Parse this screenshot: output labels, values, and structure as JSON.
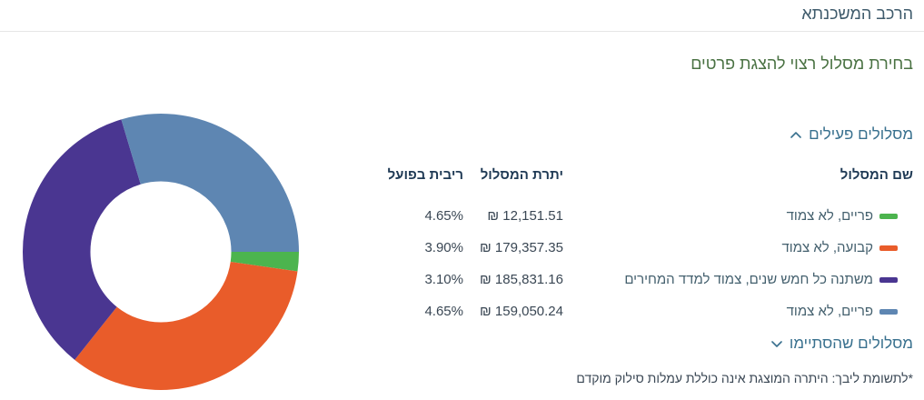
{
  "header": {
    "title": "הרכב המשכנתא"
  },
  "intro": {
    "subtitle": "בחירת מסלול רצוי להצגת פרטים"
  },
  "sections": {
    "active": {
      "label": "מסלולים פעילים",
      "state": "expanded"
    },
    "finished": {
      "label": "מסלולים שהסתיימו",
      "state": "collapsed"
    }
  },
  "table": {
    "headers": {
      "name": "שם המסלול",
      "balance": "יתרת המסלול",
      "rate": "ריבית בפועל"
    },
    "currency_symbol": "₪",
    "rows": [
      {
        "name": "פריים, לא צמוד",
        "balance": "12,151.51",
        "rate": "4.65%",
        "color": "#4CB44E"
      },
      {
        "name": "קבועה, לא צמוד",
        "balance": "179,357.35",
        "rate": "3.90%",
        "color": "#E95C2A"
      },
      {
        "name": "משתנה כל חמש שנים, צמוד למדד המחירים",
        "balance": "185,831.16",
        "rate": "3.10%",
        "color": "#4A3691"
      },
      {
        "name": "פריים, לא צמוד",
        "balance": "159,050.24",
        "rate": "4.65%",
        "color": "#5E86B2"
      }
    ]
  },
  "footnote": "*לתשומת ליבך: היתרה המוצגת אינה כוללת עמלות סילוק מוקדם",
  "chart_data": {
    "type": "pie",
    "donut": true,
    "labels": [
      "פריים, לא צמוד",
      "קבועה, לא צמוד",
      "משתנה כל חמש שנים, צמוד למדד המחירים",
      "פריים, לא צמוד"
    ],
    "values": [
      12151.51,
      179357.35,
      185831.16,
      159050.24
    ],
    "colors": [
      "#4CB44E",
      "#E95C2A",
      "#4A3691",
      "#5E86B2"
    ],
    "start_angle_deg": 90,
    "direction": "clockwise",
    "inner_radius_ratio": 0.51,
    "legend_position": "right-table"
  },
  "colors": {
    "title": "#3F5B6C",
    "subtitle": "#4A7243",
    "section_heading": "#38708E",
    "table_header": "#1F3A55",
    "row_name": "#44606E",
    "value_text": "#3A4754",
    "divider": "#E6E6E6"
  }
}
